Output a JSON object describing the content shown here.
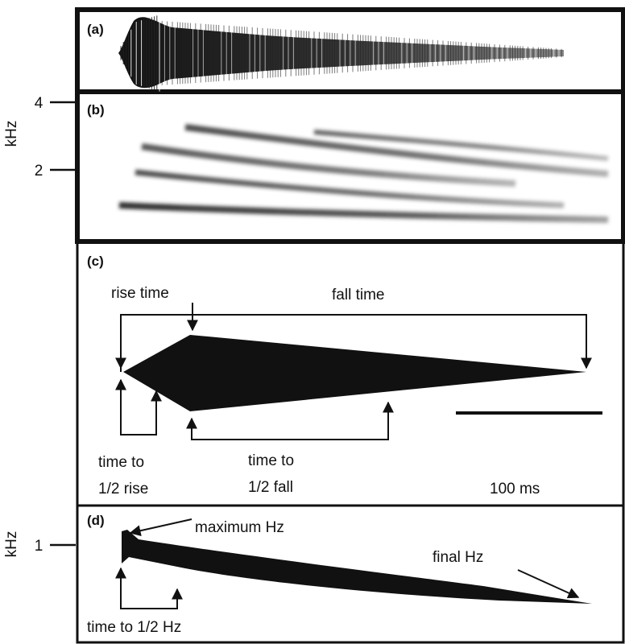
{
  "panels": {
    "a": "(a)",
    "b": "(b)",
    "c": "(c)",
    "d": "(d)"
  },
  "axis_b": {
    "unit": "kHz",
    "ticks": [
      "4",
      "2"
    ]
  },
  "axis_d": {
    "unit": "kHz",
    "ticks": [
      "1"
    ]
  },
  "panel_c": {
    "rise_time": "rise time",
    "fall_time": "fall time",
    "time_to_half_rise_l1": "time to",
    "time_to_half_rise_l2": "1/2 rise",
    "time_to_half_fall_l1": "time to",
    "time_to_half_fall_l2": "1/2 fall",
    "scale_bar": "100 ms"
  },
  "panel_d": {
    "maximum_hz": "maximum Hz",
    "final_hz": "final Hz",
    "time_to_half_hz": "time to 1/2 Hz"
  },
  "colors": {
    "ink": "#111111",
    "background": "#ffffff"
  }
}
